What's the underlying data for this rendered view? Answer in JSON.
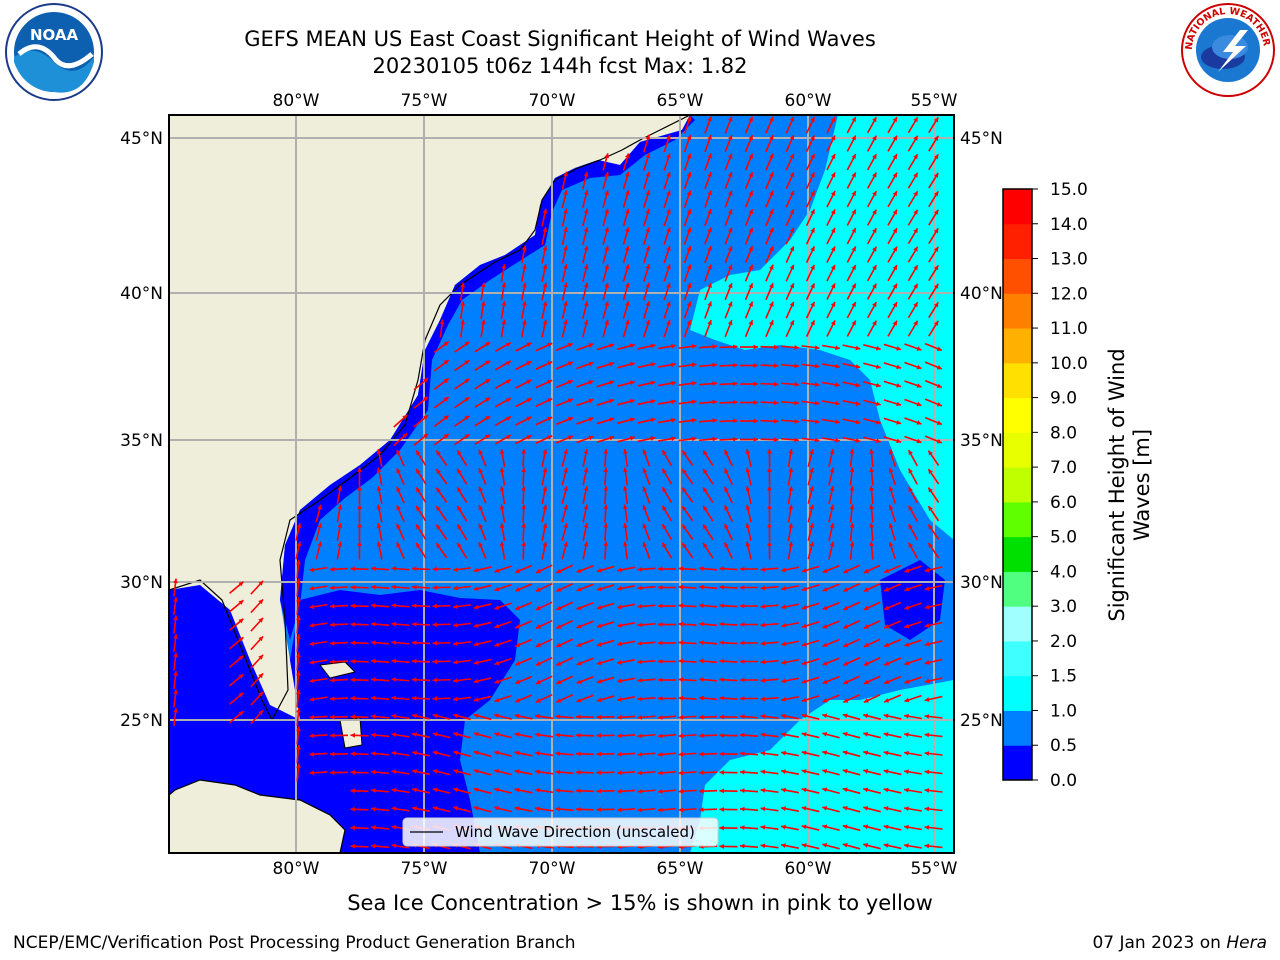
{
  "header": {
    "title_line1": "GEFS MEAN US East Coast Significant Height of Wind Waves",
    "title_line2": "20230105 t06z 144h fcst   Max: 1.82"
  },
  "map": {
    "lon_labels": [
      "80°W",
      "75°W",
      "70°W",
      "65°W",
      "60°W",
      "55°W"
    ],
    "lat_labels": [
      "45°N",
      "40°N",
      "35°N",
      "30°N",
      "25°N"
    ],
    "legend_label": "Wind Wave Direction (unscaled)"
  },
  "colorbar": {
    "label_line1": "Significant Height of Wind",
    "label_line2": "Waves [m]",
    "ticks": [
      "0.0",
      "0.5",
      "1.0",
      "1.5",
      "2.0",
      "3.0",
      "4.0",
      "5.0",
      "6.0",
      "7.0",
      "8.0",
      "9.0",
      "10.0",
      "11.0",
      "12.0",
      "13.0",
      "14.0",
      "15.0"
    ],
    "colors": [
      "#0000ff",
      "#0080ff",
      "#00ffff",
      "#40ffff",
      "#a0ffff",
      "#50ff80",
      "#00e000",
      "#60ff00",
      "#c0ff00",
      "#e8ff00",
      "#ffff00",
      "#ffe000",
      "#ffb000",
      "#ff8000",
      "#ff5000",
      "#ff2000",
      "#ff0000"
    ]
  },
  "colors": {
    "land": "#efeedb",
    "grid": "#b0b0b0",
    "arrow": "#ff0000",
    "wave_0_05": "#0000ff",
    "wave_05_1": "#0080ff",
    "wave_1_15": "#00ffff",
    "wave_15_2": "#40ffff"
  },
  "subtitle": "Sea Ice Concentration > 15% is shown in pink to yellow",
  "footer": {
    "left": "NCEP/EMC/Verification Post Processing Product Generation Branch",
    "date": "07 Jan 2023 on ",
    "machine": "Hera"
  },
  "logos": {
    "noaa_text": "NOAA",
    "nws_text": "NATIONAL WEATHER SERVICE"
  }
}
